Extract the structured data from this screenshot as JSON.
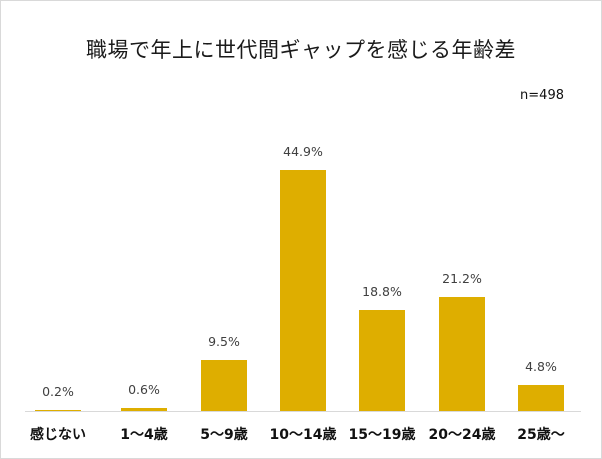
{
  "header": {
    "title": "職場で年上に世代間ギャップを感じる年齢差",
    "sample_size": "n=498"
  },
  "colors": {
    "bar": "#DEAE00",
    "axis": "#D9D9D9"
  },
  "chart_data": {
    "type": "bar",
    "title": "職場で年上に世代間ギャップを感じる年齢差",
    "subtitle": "n=498",
    "xlabel": "",
    "ylabel": "",
    "ylim": [
      0,
      50
    ],
    "grid": false,
    "legend": null,
    "categories": [
      "感じない",
      "1～4歳",
      "5～9歳",
      "10～14歳",
      "15～19歳",
      "20～24歳",
      "25歳～"
    ],
    "values": [
      0.2,
      0.6,
      9.5,
      44.9,
      18.8,
      21.2,
      4.8
    ],
    "value_labels": [
      "0.2%",
      "0.6%",
      "9.5%",
      "44.9%",
      "18.8%",
      "21.2%",
      "4.8%"
    ],
    "unit": "%"
  }
}
